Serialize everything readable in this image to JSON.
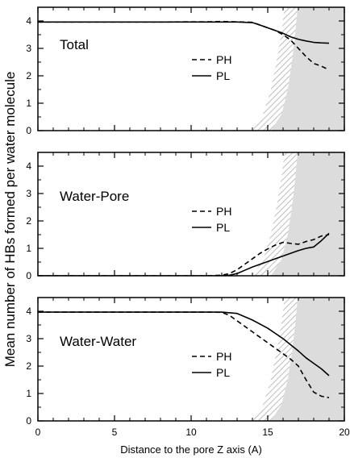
{
  "figure": {
    "ylabel": "Mean number of HBs formed per water molecule",
    "xlabel": "Distance to the pore Z axis (A)",
    "x_ticks": [
      0,
      5,
      10,
      15,
      20
    ],
    "y_ticks": [
      0,
      1,
      2,
      3,
      4
    ],
    "xlim": [
      0,
      20
    ],
    "ylim": [
      0,
      4.5
    ]
  },
  "shading": {
    "fill_color": "#dcdcdc",
    "hatch_color": "#bdbdbd",
    "hatch_band_lower": [
      [
        14.0,
        0.0
      ],
      [
        14.7,
        0.6
      ],
      [
        15.2,
        1.5
      ],
      [
        15.6,
        2.6
      ],
      [
        15.9,
        3.6
      ],
      [
        16.1,
        4.5
      ]
    ],
    "hatch_band_upper": [
      [
        15.2,
        0.0
      ],
      [
        15.9,
        0.6
      ],
      [
        16.3,
        1.5
      ],
      [
        16.6,
        2.6
      ],
      [
        16.8,
        3.6
      ],
      [
        16.95,
        4.5
      ]
    ]
  },
  "chart_data": [
    {
      "type": "line",
      "title": "Total",
      "ylim": [
        0,
        4.5
      ],
      "xlim": [
        0,
        20
      ],
      "series": [
        {
          "name": "PH",
          "dash": true,
          "x": [
            0,
            2,
            4,
            6,
            8,
            10,
            11,
            12,
            13,
            14,
            14.5,
            15,
            15.5,
            16,
            16.5,
            17,
            17.5,
            18,
            18.5,
            19
          ],
          "y": [
            3.96,
            3.96,
            3.96,
            3.96,
            3.96,
            3.97,
            3.97,
            3.98,
            3.97,
            3.95,
            3.85,
            3.75,
            3.65,
            3.5,
            3.3,
            3.0,
            2.7,
            2.45,
            2.35,
            2.22
          ]
        },
        {
          "name": "PL",
          "dash": false,
          "x": [
            0,
            2,
            4,
            6,
            8,
            10,
            11,
            12,
            13,
            14,
            14.5,
            15,
            15.5,
            16,
            16.5,
            17,
            17.5,
            18,
            18.5,
            19
          ],
          "y": [
            3.96,
            3.96,
            3.96,
            3.96,
            3.96,
            3.96,
            3.96,
            3.96,
            3.96,
            3.94,
            3.85,
            3.75,
            3.65,
            3.55,
            3.42,
            3.33,
            3.27,
            3.22,
            3.2,
            3.19
          ]
        }
      ]
    },
    {
      "type": "line",
      "title": "Water-Pore",
      "ylim": [
        0,
        4.5
      ],
      "xlim": [
        0,
        20
      ],
      "series": [
        {
          "name": "PH",
          "dash": true,
          "x": [
            0,
            5,
            10,
            11,
            12,
            12.5,
            13,
            13.5,
            14,
            14.5,
            15,
            15.5,
            16,
            16.5,
            17,
            17.5,
            18,
            18.5,
            19
          ],
          "y": [
            0,
            0,
            0,
            0,
            0.02,
            0.08,
            0.22,
            0.42,
            0.62,
            0.82,
            0.98,
            1.12,
            1.22,
            1.18,
            1.15,
            1.25,
            1.32,
            1.45,
            1.5
          ]
        },
        {
          "name": "PL",
          "dash": false,
          "x": [
            0,
            5,
            10,
            11,
            12,
            12.5,
            13,
            13.5,
            14,
            14.5,
            15,
            15.5,
            16,
            16.5,
            17,
            17.5,
            18,
            18.5,
            19
          ],
          "y": [
            0,
            0,
            0,
            0,
            0.0,
            0.02,
            0.08,
            0.2,
            0.32,
            0.42,
            0.52,
            0.62,
            0.72,
            0.82,
            0.92,
            1.0,
            1.05,
            1.28,
            1.55
          ]
        }
      ]
    },
    {
      "type": "line",
      "title": "Water-Water",
      "ylim": [
        0,
        4.5
      ],
      "xlim": [
        0,
        20
      ],
      "series": [
        {
          "name": "PH",
          "dash": true,
          "x": [
            0,
            2,
            4,
            6,
            8,
            10,
            11,
            12,
            12.5,
            13,
            14,
            15,
            16,
            16.5,
            17,
            17.5,
            18,
            18.5,
            19
          ],
          "y": [
            3.97,
            3.97,
            3.97,
            3.97,
            3.97,
            3.97,
            3.97,
            3.96,
            3.85,
            3.65,
            3.25,
            2.85,
            2.45,
            2.25,
            2.0,
            1.5,
            1.05,
            0.9,
            0.85
          ]
        },
        {
          "name": "PL",
          "dash": false,
          "x": [
            0,
            2,
            4,
            6,
            8,
            10,
            11,
            12,
            13,
            14,
            15,
            16,
            17,
            17.5,
            18,
            18.5,
            19
          ],
          "y": [
            3.97,
            3.97,
            3.97,
            3.97,
            3.97,
            3.97,
            3.97,
            3.97,
            3.92,
            3.68,
            3.38,
            3.0,
            2.55,
            2.3,
            2.1,
            1.9,
            1.65
          ]
        }
      ]
    }
  ]
}
